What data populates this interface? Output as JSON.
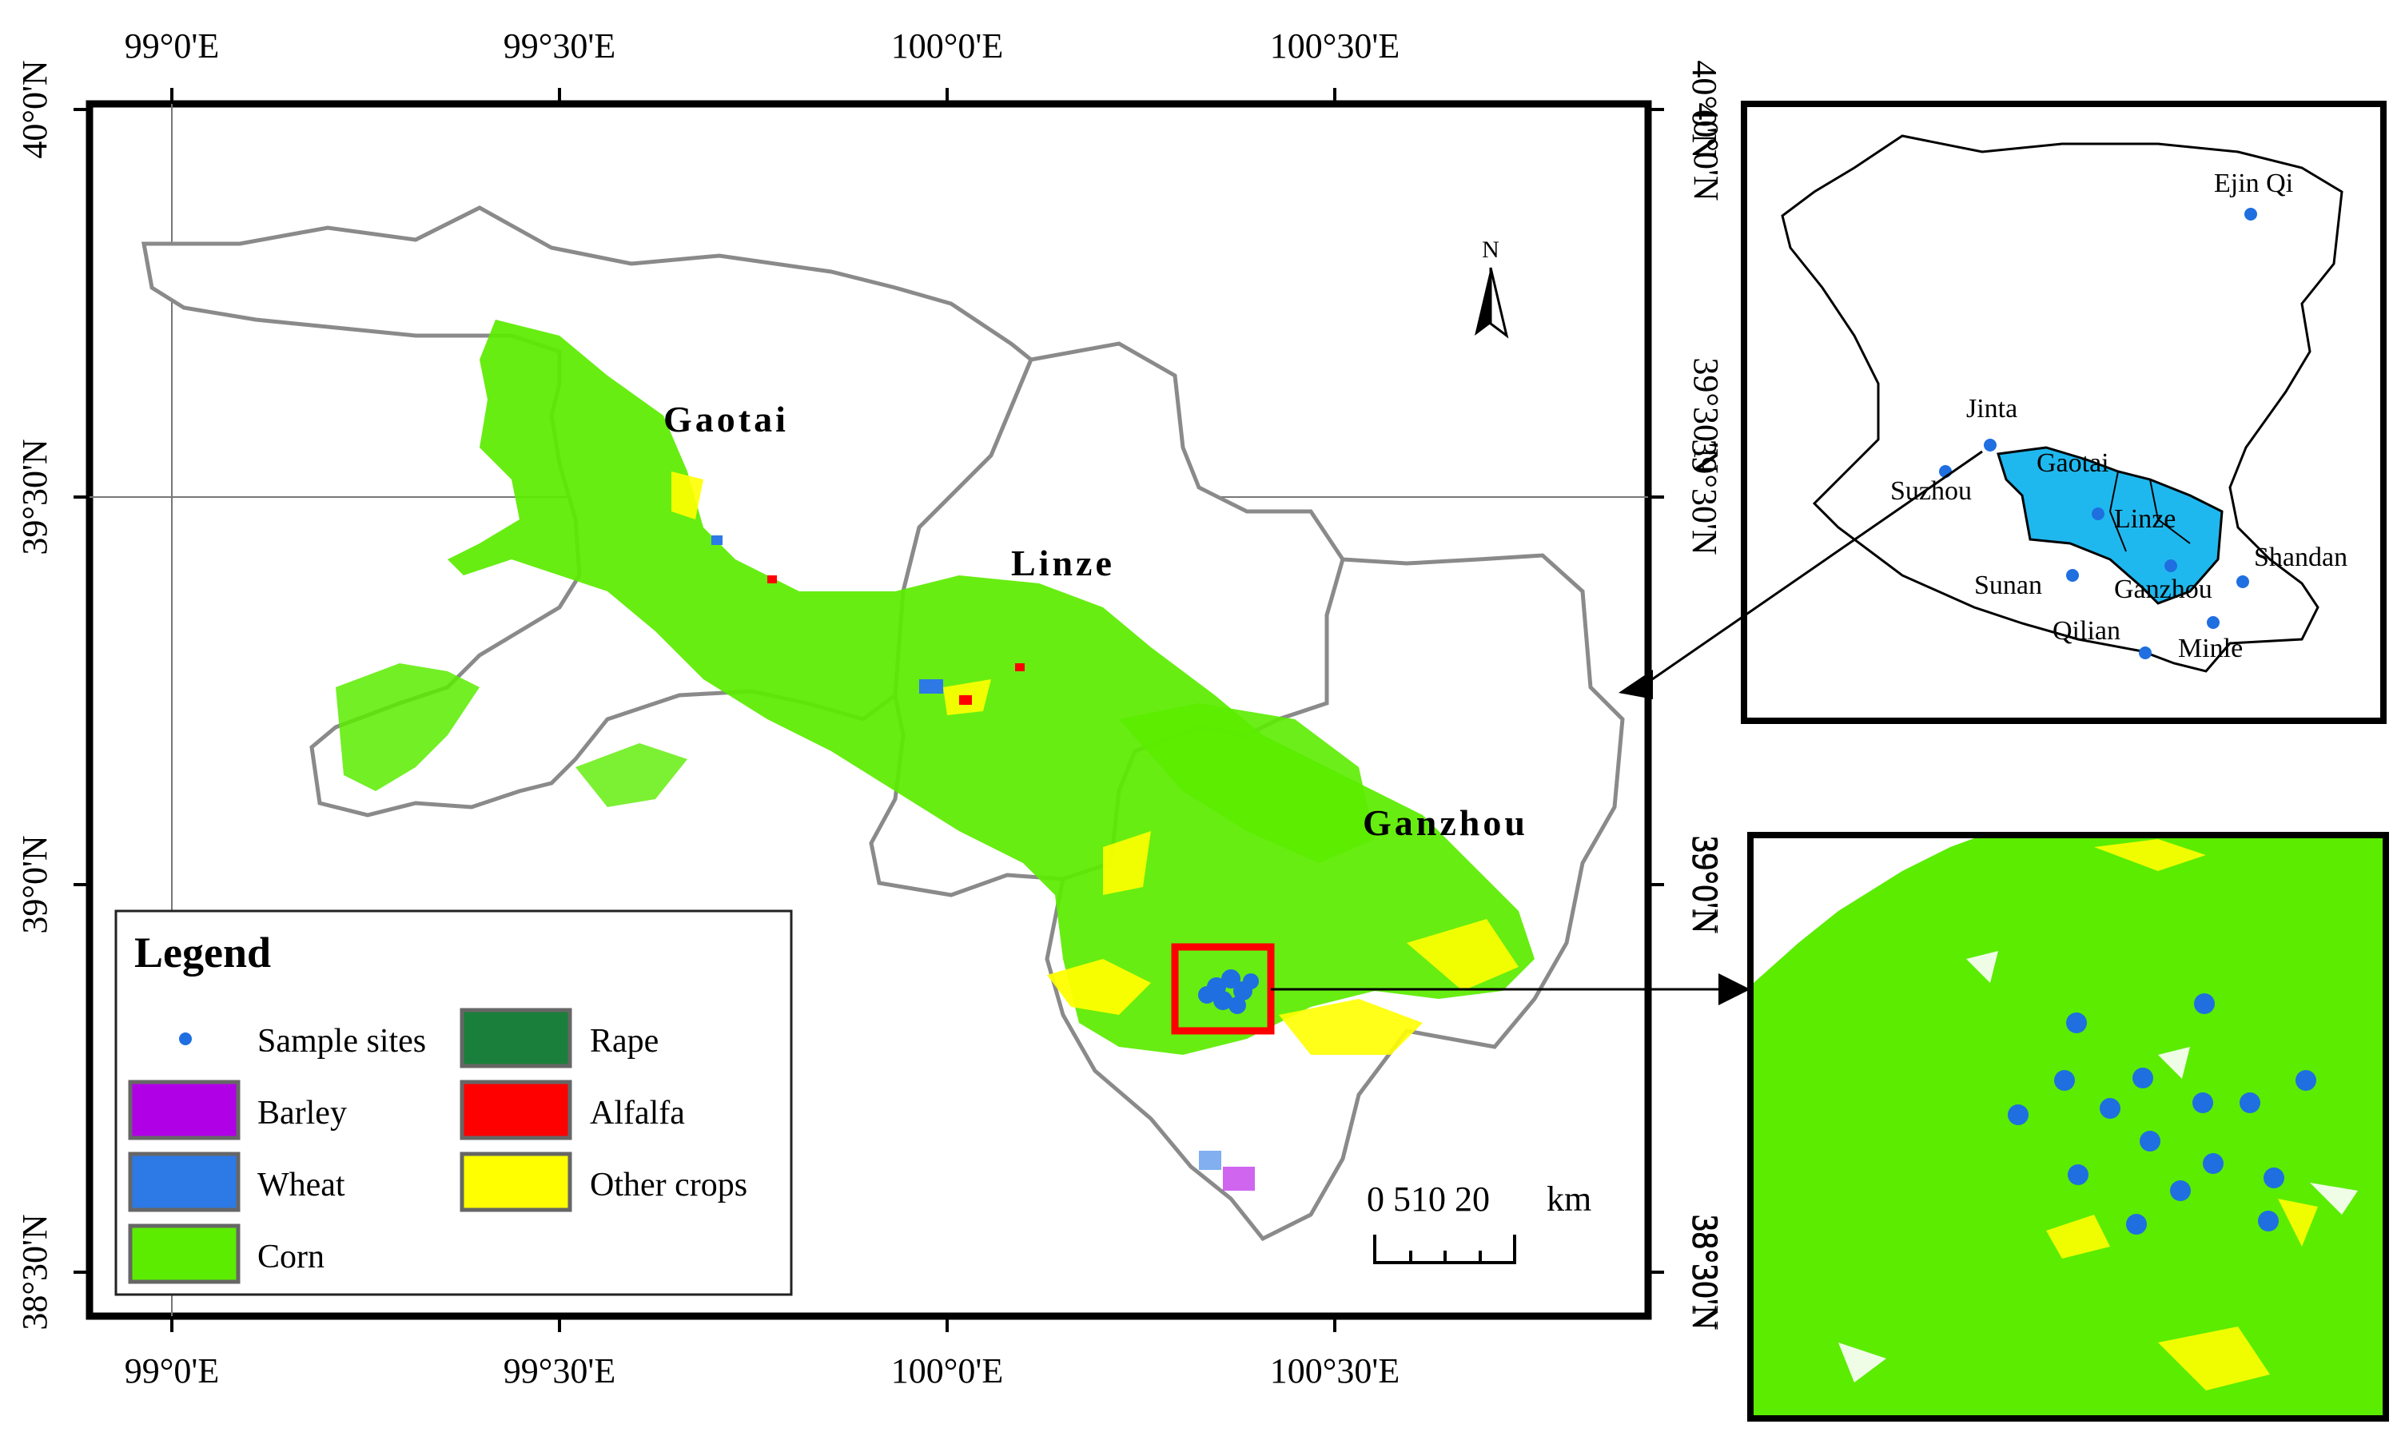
{
  "main_map": {
    "lon_labels": [
      "99°0'E",
      "99°30'E",
      "100°0'E",
      "100°30'E"
    ],
    "lat_labels": [
      "40°0'N",
      "39°30'N",
      "39°0'N",
      "38°30'N"
    ],
    "county_labels": [
      "Gaotai",
      "Linze",
      "Ganzhou"
    ],
    "north_arrow": "N",
    "scale_bar": {
      "ticks": "0 510  20",
      "unit": "km"
    }
  },
  "legend": {
    "title": "Legend",
    "items": [
      {
        "label": "Sample sites",
        "color": "#1f6fe0",
        "kind": "dot"
      },
      {
        "label": "Rape",
        "color": "#1a7f3a",
        "kind": "box"
      },
      {
        "label": "Barley",
        "color": "#b000e6",
        "kind": "box"
      },
      {
        "label": "Alfalfa",
        "color": "#ff0000",
        "kind": "box"
      },
      {
        "label": "Wheat",
        "color": "#2d79e6",
        "kind": "box"
      },
      {
        "label": "Other crops",
        "color": "#ffff00",
        "kind": "box"
      },
      {
        "label": "Corn",
        "color": "#5bec00",
        "kind": "box"
      }
    ]
  },
  "inset_map": {
    "lat_labels": [
      "40°0'N",
      "39°30'N"
    ],
    "places": [
      "Ejin Qi",
      "Jinta",
      "Suzhou",
      "Gaotai",
      "Linze",
      "Sunan",
      "Ganzhou",
      "Shandan",
      "Qilian",
      "Minle"
    ],
    "study_area_color": "#1fb8ee"
  },
  "zoom_map": {
    "lat_labels": [
      "39°0'N",
      "38°30'N"
    ]
  },
  "colors": {
    "corn": "#5bec00",
    "other_crops": "#ffff00",
    "wheat": "#2d79e6",
    "alfalfa": "#ff0000",
    "sample_site": "#1f6fe0",
    "highlight_box": "#ff0000"
  }
}
